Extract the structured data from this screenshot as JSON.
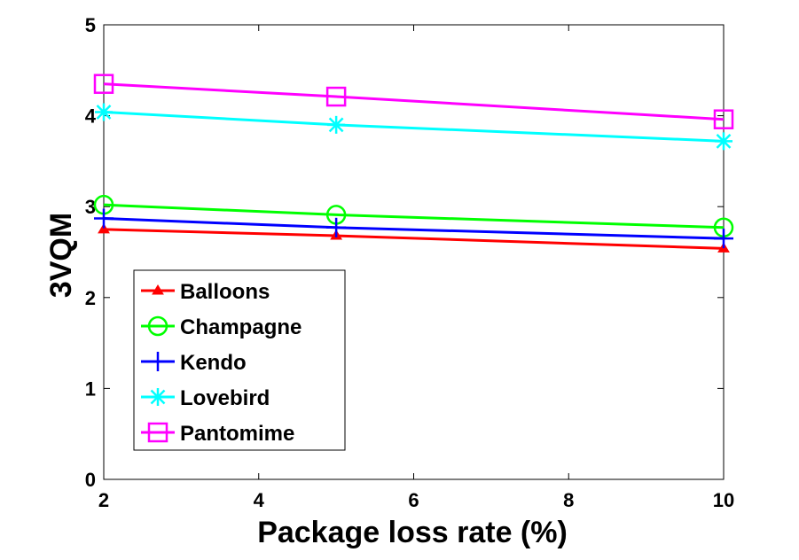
{
  "chart_data": {
    "type": "line",
    "title": "",
    "xlabel": "Package loss rate (%)",
    "ylabel": "3VQM",
    "x": [
      2,
      5,
      10
    ],
    "xlim": [
      2,
      10
    ],
    "ylim": [
      0,
      5
    ],
    "xticks": [
      "2",
      "4",
      "6",
      "8",
      "10"
    ],
    "yticks": [
      "0",
      "1",
      "2",
      "3",
      "4",
      "5"
    ],
    "grid": false,
    "legend_position": "lower-left",
    "series": [
      {
        "name": "Balloons",
        "color": "#ff0000",
        "marker": "triangle",
        "values": [
          2.75,
          2.68,
          2.54
        ]
      },
      {
        "name": "Champagne",
        "color": "#00ff00",
        "marker": "circle",
        "values": [
          3.02,
          2.91,
          2.77
        ]
      },
      {
        "name": "Kendo",
        "color": "#0000ff",
        "marker": "plus",
        "values": [
          2.87,
          2.77,
          2.65
        ]
      },
      {
        "name": "Lovebird",
        "color": "#00ffff",
        "marker": "asterisk",
        "values": [
          4.04,
          3.9,
          3.72
        ]
      },
      {
        "name": "Pantomime",
        "color": "#ff00ff",
        "marker": "square",
        "values": [
          4.35,
          4.21,
          3.96
        ]
      }
    ]
  }
}
